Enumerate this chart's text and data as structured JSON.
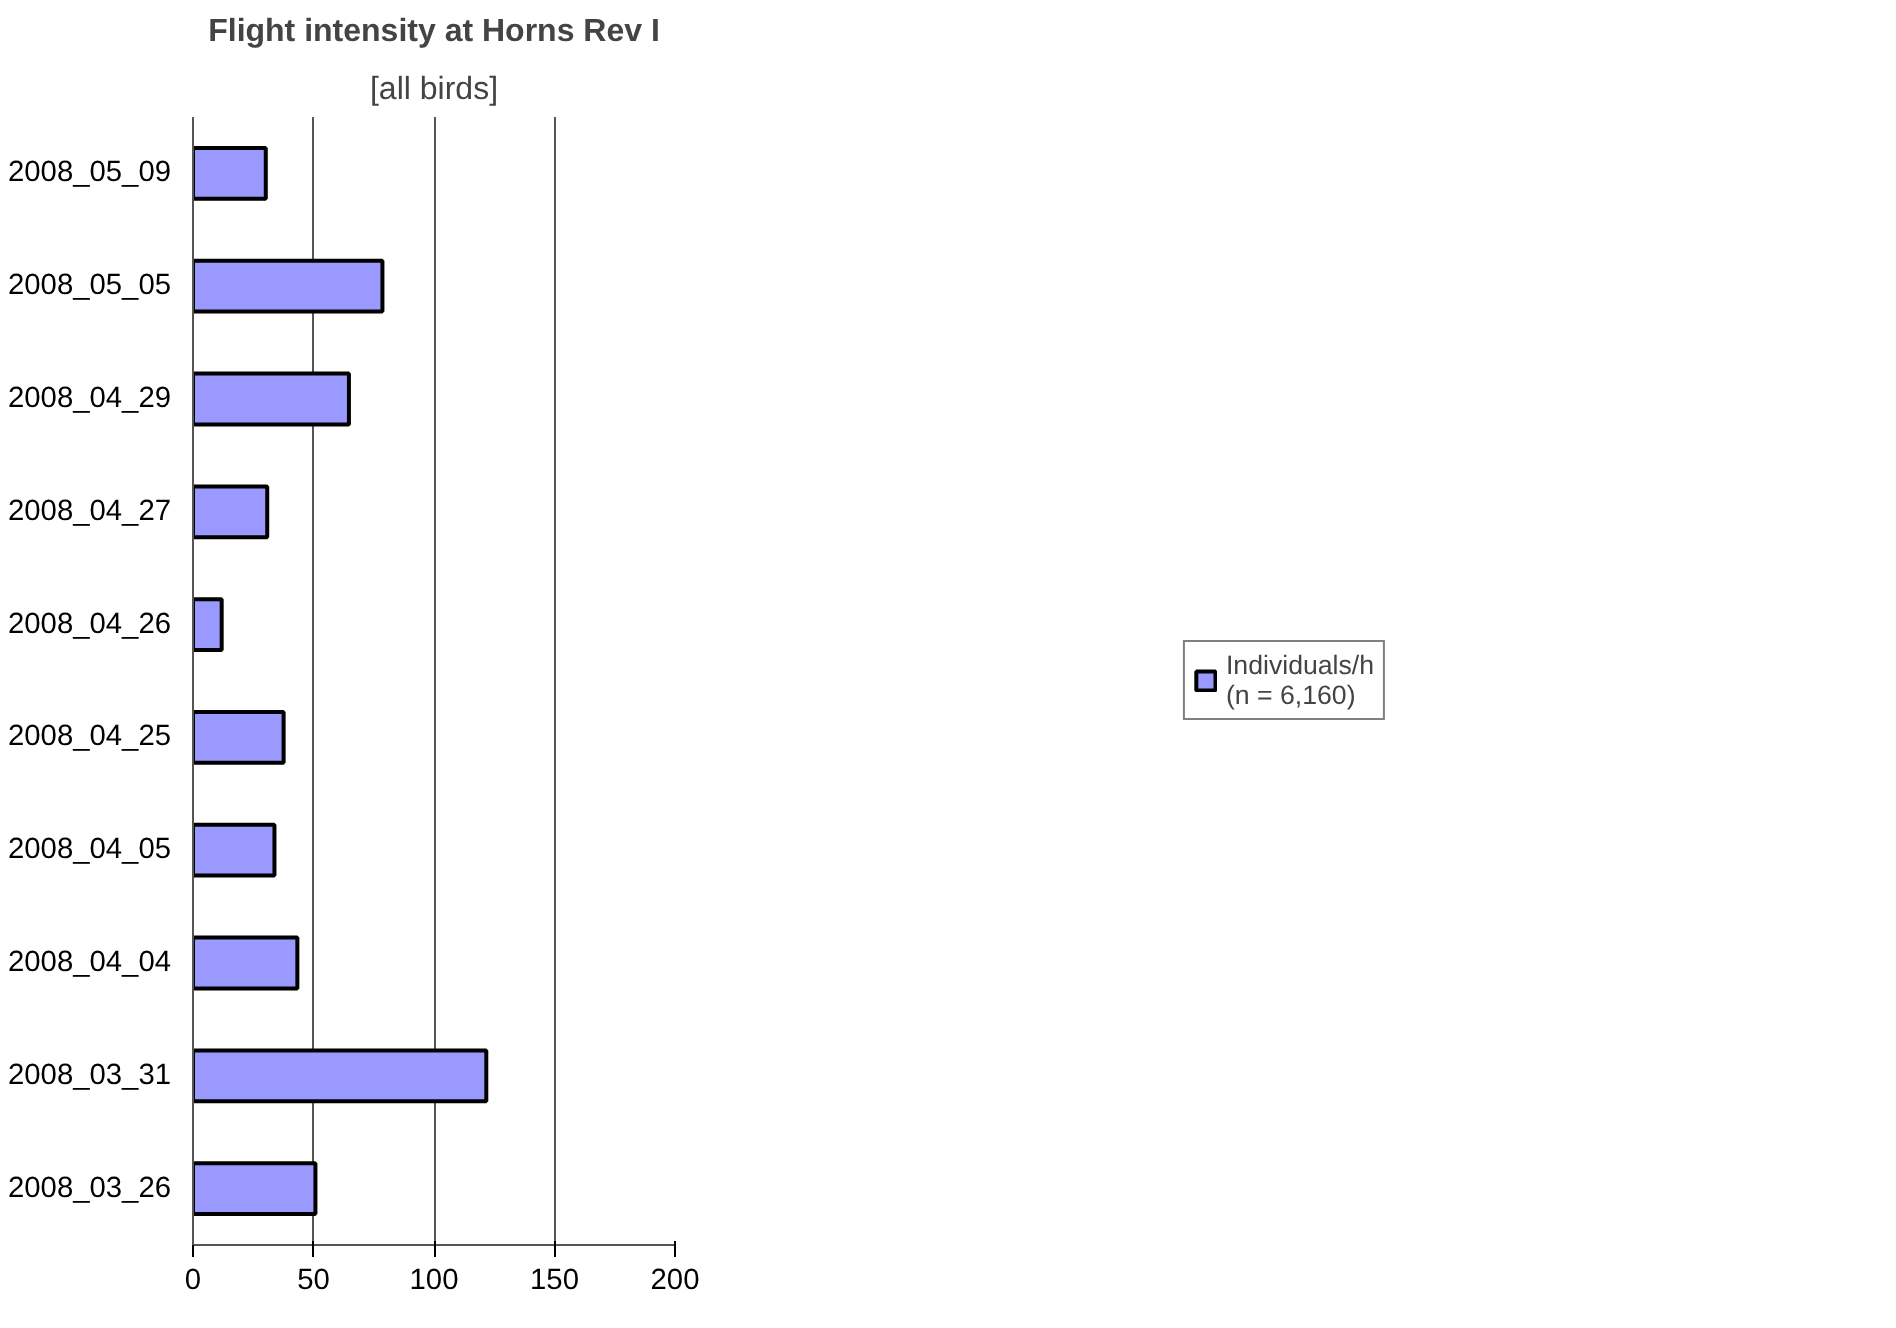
{
  "chart_data": {
    "type": "bar",
    "orientation": "horizontal",
    "title": "Flight intensity at Horns Rev I",
    "subtitle": "[all birds]",
    "categories": [
      "2008_05_09",
      "2008_05_05",
      "2008_04_29",
      "2008_04_27",
      "2008_04_26",
      "2008_04_25",
      "2008_04_05",
      "2008_04_04",
      "2008_03_31",
      "2008_03_26"
    ],
    "series": [
      {
        "name": "Individuals/h\n(n = 6,160)",
        "color": "#9999ff",
        "values": [
          30.2,
          78.6,
          64.7,
          30.8,
          11.9,
          37.6,
          33.8,
          43.3,
          121.7,
          50.8
        ]
      }
    ],
    "xlim": [
      0,
      200
    ],
    "xticks": [
      0,
      50,
      100,
      150,
      200
    ],
    "grid": "x",
    "legend": "right"
  }
}
